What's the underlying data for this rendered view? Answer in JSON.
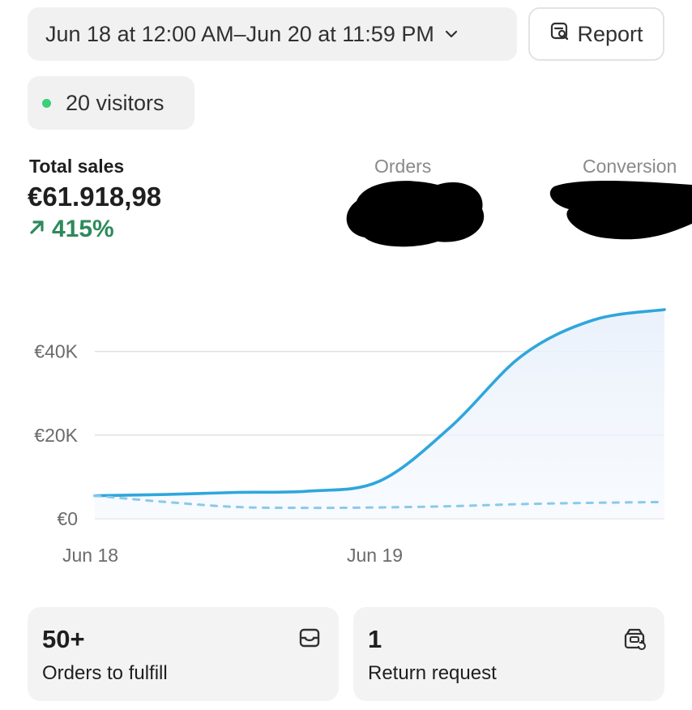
{
  "header": {
    "date_range": "Jun 18 at 12:00 AM–Jun 20 at 11:59 PM",
    "report_label": "Report"
  },
  "visitors": {
    "label": "20 visitors",
    "dot_color": "#3ad07a"
  },
  "metrics": {
    "total_sales": {
      "label": "Total sales",
      "value": "€61.918,98",
      "change": "415%",
      "change_color": "#2e8a5c"
    },
    "orders": {
      "label": "Orders"
    },
    "conversion": {
      "label": "Conversion"
    }
  },
  "chart_data": {
    "type": "line",
    "x_ticks": [
      "Jun 18",
      "Jun 19"
    ],
    "y_ticks": [
      "€0",
      "€20K",
      "€40K"
    ],
    "ylim": [
      0,
      50000
    ],
    "series": [
      {
        "style": "solid",
        "color": "#2fa6dc",
        "x": [
          0,
          0.25,
          0.5,
          0.75,
          1.0,
          1.25,
          1.5,
          1.75,
          2.0
        ],
        "y": [
          5500,
          5800,
          6300,
          6600,
          9000,
          22000,
          39000,
          47500,
          50000
        ]
      },
      {
        "style": "dashed",
        "color": "#8cc9ea",
        "x": [
          0,
          0.25,
          0.5,
          0.75,
          1.0,
          1.25,
          1.5,
          1.75,
          2.0
        ],
        "y": [
          5500,
          4000,
          2800,
          2600,
          2700,
          3000,
          3500,
          3800,
          4000
        ]
      }
    ]
  },
  "cards": [
    {
      "value": "50+",
      "label": "Orders to fulfill",
      "icon": "inbox-icon"
    },
    {
      "value": "1",
      "label": "Return request",
      "icon": "return-box-icon"
    }
  ]
}
